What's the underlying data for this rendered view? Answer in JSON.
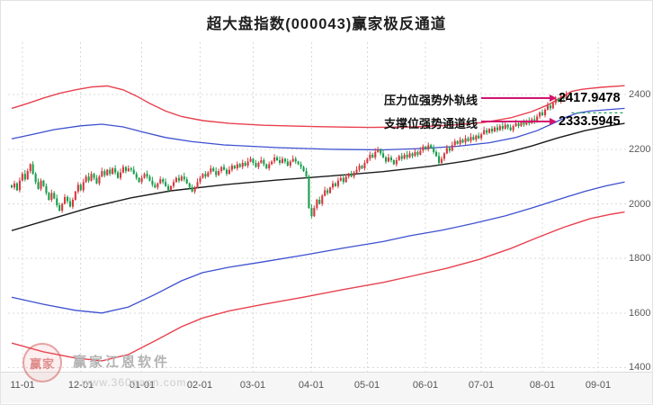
{
  "title": "超大盘指数(000043)赢家极反通道",
  "annotations": {
    "resistance": {
      "label": "压力位强势外轨线",
      "value": "2417.9478"
    },
    "support": {
      "label": "支撑位强势通道线",
      "value": "2333.5945"
    }
  },
  "watermark": {
    "logo_text": "赢家",
    "brand": "赢家江恩软件",
    "url": "www.360gann.com"
  },
  "colors": {
    "candle_up": "#d8383f",
    "candle_down": "#189e4b",
    "outer_red": "#e8414f",
    "channel_blue": "#3c50d0",
    "mid_black": "#1b1b1b",
    "arrow_magenta": "#d2146e",
    "grid": "#d8d8d8",
    "projection_green": "#2ba05c"
  },
  "chart_data": {
    "type": "candlestick",
    "title": "超大盘指数(000043)赢家极反通道",
    "symbol": "000043",
    "legend_position": "none",
    "grid": true,
    "y_ticks": [
      1400,
      1600,
      1800,
      2000,
      2200,
      2400
    ],
    "ylim": [
      1385,
      2592
    ],
    "x_ticks": {
      "labels": [
        "11-01",
        "12-01",
        "01-01",
        "02-01",
        "03-01",
        "04-01",
        "05-01",
        "06-01",
        "07-01",
        "08-01",
        "09-01"
      ],
      "days": [
        4,
        26,
        49,
        71,
        91,
        113,
        134,
        156,
        177,
        200,
        221
      ]
    },
    "total_days": 231,
    "closes": [
      2060,
      2075,
      2050,
      2085,
      2110,
      2090,
      2120,
      2145,
      2110,
      2080,
      2055,
      2085,
      2065,
      2040,
      2015,
      2040,
      2020,
      1995,
      1975,
      2000,
      2025,
      2010,
      1990,
      2015,
      2045,
      2070,
      2050,
      2080,
      2100,
      2085,
      2110,
      2095,
      2075,
      2100,
      2120,
      2105,
      2125,
      2110,
      2130,
      2115,
      2095,
      2115,
      2135,
      2120,
      2130,
      2125,
      2110,
      2095,
      2080,
      2095,
      2110,
      2100,
      2085,
      2070,
      2060,
      2075,
      2090,
      2080,
      2065,
      2050,
      2065,
      2080,
      2095,
      2085,
      2100,
      2090,
      2075,
      2060,
      2045,
      2060,
      2080,
      2095,
      2110,
      2100,
      2115,
      2130,
      2120,
      2105,
      2120,
      2135,
      2125,
      2110,
      2125,
      2140,
      2130,
      2145,
      2135,
      2150,
      2140,
      2155,
      2165,
      2150,
      2135,
      2150,
      2160,
      2145,
      2130,
      2145,
      2155,
      2170,
      2160,
      2150,
      2165,
      2155,
      2140,
      2155,
      2165,
      2155,
      2145,
      2135,
      2120,
      2100,
      1985,
      1955,
      1985,
      2015,
      2000,
      2030,
      2050,
      2040,
      2060,
      2075,
      2065,
      2085,
      2095,
      2080,
      2100,
      2110,
      2100,
      2115,
      2125,
      2140,
      2130,
      2150,
      2165,
      2180,
      2170,
      2190,
      2200,
      2185,
      2170,
      2155,
      2170,
      2160,
      2145,
      2160,
      2175,
      2165,
      2180,
      2170,
      2185,
      2175,
      2190,
      2180,
      2195,
      2210,
      2200,
      2215,
      2205,
      2190,
      2175,
      2150,
      2165,
      2185,
      2205,
      2195,
      2215,
      2230,
      2220,
      2235,
      2225,
      2240,
      2230,
      2245,
      2235,
      2250,
      2240,
      2255,
      2270,
      2260,
      2275,
      2265,
      2280,
      2270,
      2285,
      2275,
      2290,
      2280,
      2270,
      2285,
      2295,
      2285,
      2300,
      2290,
      2305,
      2295,
      2310,
      2300,
      2320,
      2335,
      2325,
      2345,
      2360,
      2350,
      2370,
      2385,
      2375,
      2395,
      2385,
      2400
    ],
    "lines": {
      "resistance_outer_red": {
        "label": "压力位强势外轨线",
        "points": [
          [
            0,
            2350
          ],
          [
            6,
            2368
          ],
          [
            12,
            2388
          ],
          [
            18,
            2405
          ],
          [
            24,
            2418
          ],
          [
            30,
            2428
          ],
          [
            36,
            2432
          ],
          [
            42,
            2418
          ],
          [
            47,
            2395
          ],
          [
            52,
            2368
          ],
          [
            58,
            2340
          ],
          [
            64,
            2320
          ],
          [
            72,
            2305
          ],
          [
            82,
            2295
          ],
          [
            95,
            2288
          ],
          [
            115,
            2283
          ],
          [
            135,
            2280
          ],
          [
            152,
            2282
          ],
          [
            165,
            2288
          ],
          [
            178,
            2298
          ],
          [
            188,
            2315
          ],
          [
            196,
            2338
          ],
          [
            202,
            2362
          ],
          [
            207,
            2390
          ],
          [
            211,
            2412
          ],
          [
            215,
            2420
          ],
          [
            222,
            2427
          ],
          [
            231,
            2433
          ]
        ]
      },
      "upper_channel_blue": {
        "points": [
          [
            0,
            2238
          ],
          [
            8,
            2255
          ],
          [
            16,
            2272
          ],
          [
            26,
            2286
          ],
          [
            34,
            2292
          ],
          [
            42,
            2282
          ],
          [
            50,
            2262
          ],
          [
            58,
            2243
          ],
          [
            68,
            2228
          ],
          [
            80,
            2216
          ],
          [
            100,
            2206
          ],
          [
            120,
            2200
          ],
          [
            140,
            2198
          ],
          [
            155,
            2203
          ],
          [
            168,
            2211
          ],
          [
            180,
            2224
          ],
          [
            190,
            2243
          ],
          [
            198,
            2268
          ],
          [
            204,
            2295
          ],
          [
            209,
            2318
          ],
          [
            213,
            2332
          ],
          [
            218,
            2340
          ],
          [
            231,
            2350
          ]
        ]
      },
      "mid_black": {
        "points": [
          [
            0,
            1902
          ],
          [
            15,
            1945
          ],
          [
            30,
            1988
          ],
          [
            45,
            2022
          ],
          [
            60,
            2048
          ],
          [
            80,
            2070
          ],
          [
            100,
            2087
          ],
          [
            120,
            2102
          ],
          [
            140,
            2118
          ],
          [
            158,
            2138
          ],
          [
            172,
            2158
          ],
          [
            186,
            2186
          ],
          [
            196,
            2212
          ],
          [
            206,
            2242
          ],
          [
            216,
            2268
          ],
          [
            224,
            2284
          ],
          [
            231,
            2295
          ]
        ]
      },
      "lower_channel_blue": {
        "points": [
          [
            0,
            1658
          ],
          [
            12,
            1632
          ],
          [
            24,
            1610
          ],
          [
            34,
            1600
          ],
          [
            44,
            1622
          ],
          [
            54,
            1668
          ],
          [
            64,
            1718
          ],
          [
            72,
            1748
          ],
          [
            82,
            1768
          ],
          [
            95,
            1788
          ],
          [
            110,
            1812
          ],
          [
            125,
            1838
          ],
          [
            140,
            1862
          ],
          [
            150,
            1883
          ],
          [
            162,
            1903
          ],
          [
            174,
            1928
          ],
          [
            186,
            1956
          ],
          [
            196,
            1985
          ],
          [
            206,
            2016
          ],
          [
            216,
            2046
          ],
          [
            224,
            2066
          ],
          [
            231,
            2080
          ]
        ]
      },
      "lower_outer_red": {
        "points": [
          [
            0,
            1490
          ],
          [
            12,
            1458
          ],
          [
            24,
            1435
          ],
          [
            34,
            1425
          ],
          [
            44,
            1448
          ],
          [
            54,
            1498
          ],
          [
            64,
            1550
          ],
          [
            72,
            1582
          ],
          [
            82,
            1608
          ],
          [
            95,
            1632
          ],
          [
            110,
            1658
          ],
          [
            125,
            1686
          ],
          [
            140,
            1712
          ],
          [
            152,
            1738
          ],
          [
            164,
            1764
          ],
          [
            176,
            1796
          ],
          [
            188,
            1836
          ],
          [
            198,
            1876
          ],
          [
            208,
            1914
          ],
          [
            218,
            1946
          ],
          [
            226,
            1962
          ],
          [
            231,
            1970
          ]
        ]
      }
    },
    "support_projection": {
      "price": 2333.59,
      "from_day": 211,
      "to_day": 231
    },
    "current_values": {
      "resistance_outer": 2417.9478,
      "support_channel": 2333.5945
    }
  }
}
